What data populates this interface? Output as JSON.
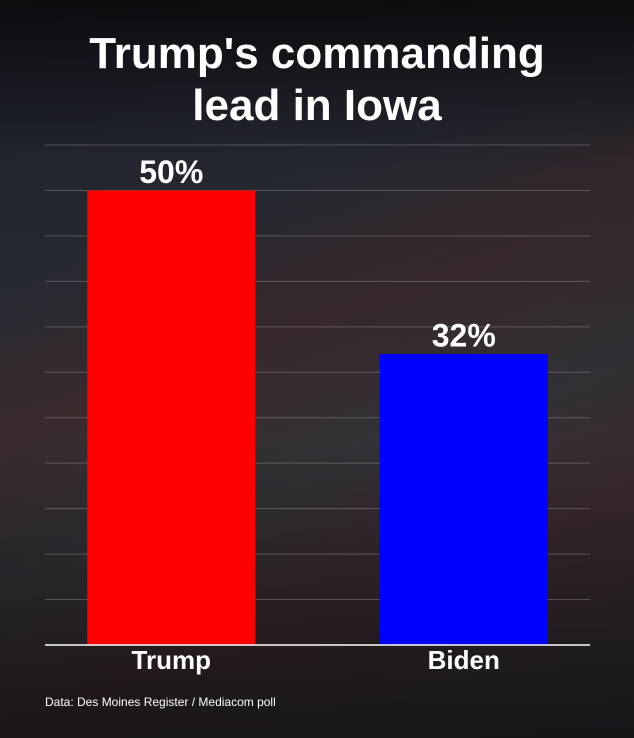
{
  "chart_data": {
    "type": "bar",
    "title": "Trump's commanding lead in Iowa",
    "categories": [
      "Trump",
      "Biden"
    ],
    "values": [
      50,
      32
    ],
    "value_labels": [
      "50%",
      "32%"
    ],
    "colors": [
      "#ff0000",
      "#0000ff"
    ],
    "ylim": [
      0,
      55
    ],
    "yticks": [
      0,
      5,
      10,
      15,
      20,
      25,
      30,
      35,
      40,
      45,
      50,
      55
    ],
    "grid": true,
    "source": "Data: Des Moines Register / Mediacom poll"
  }
}
